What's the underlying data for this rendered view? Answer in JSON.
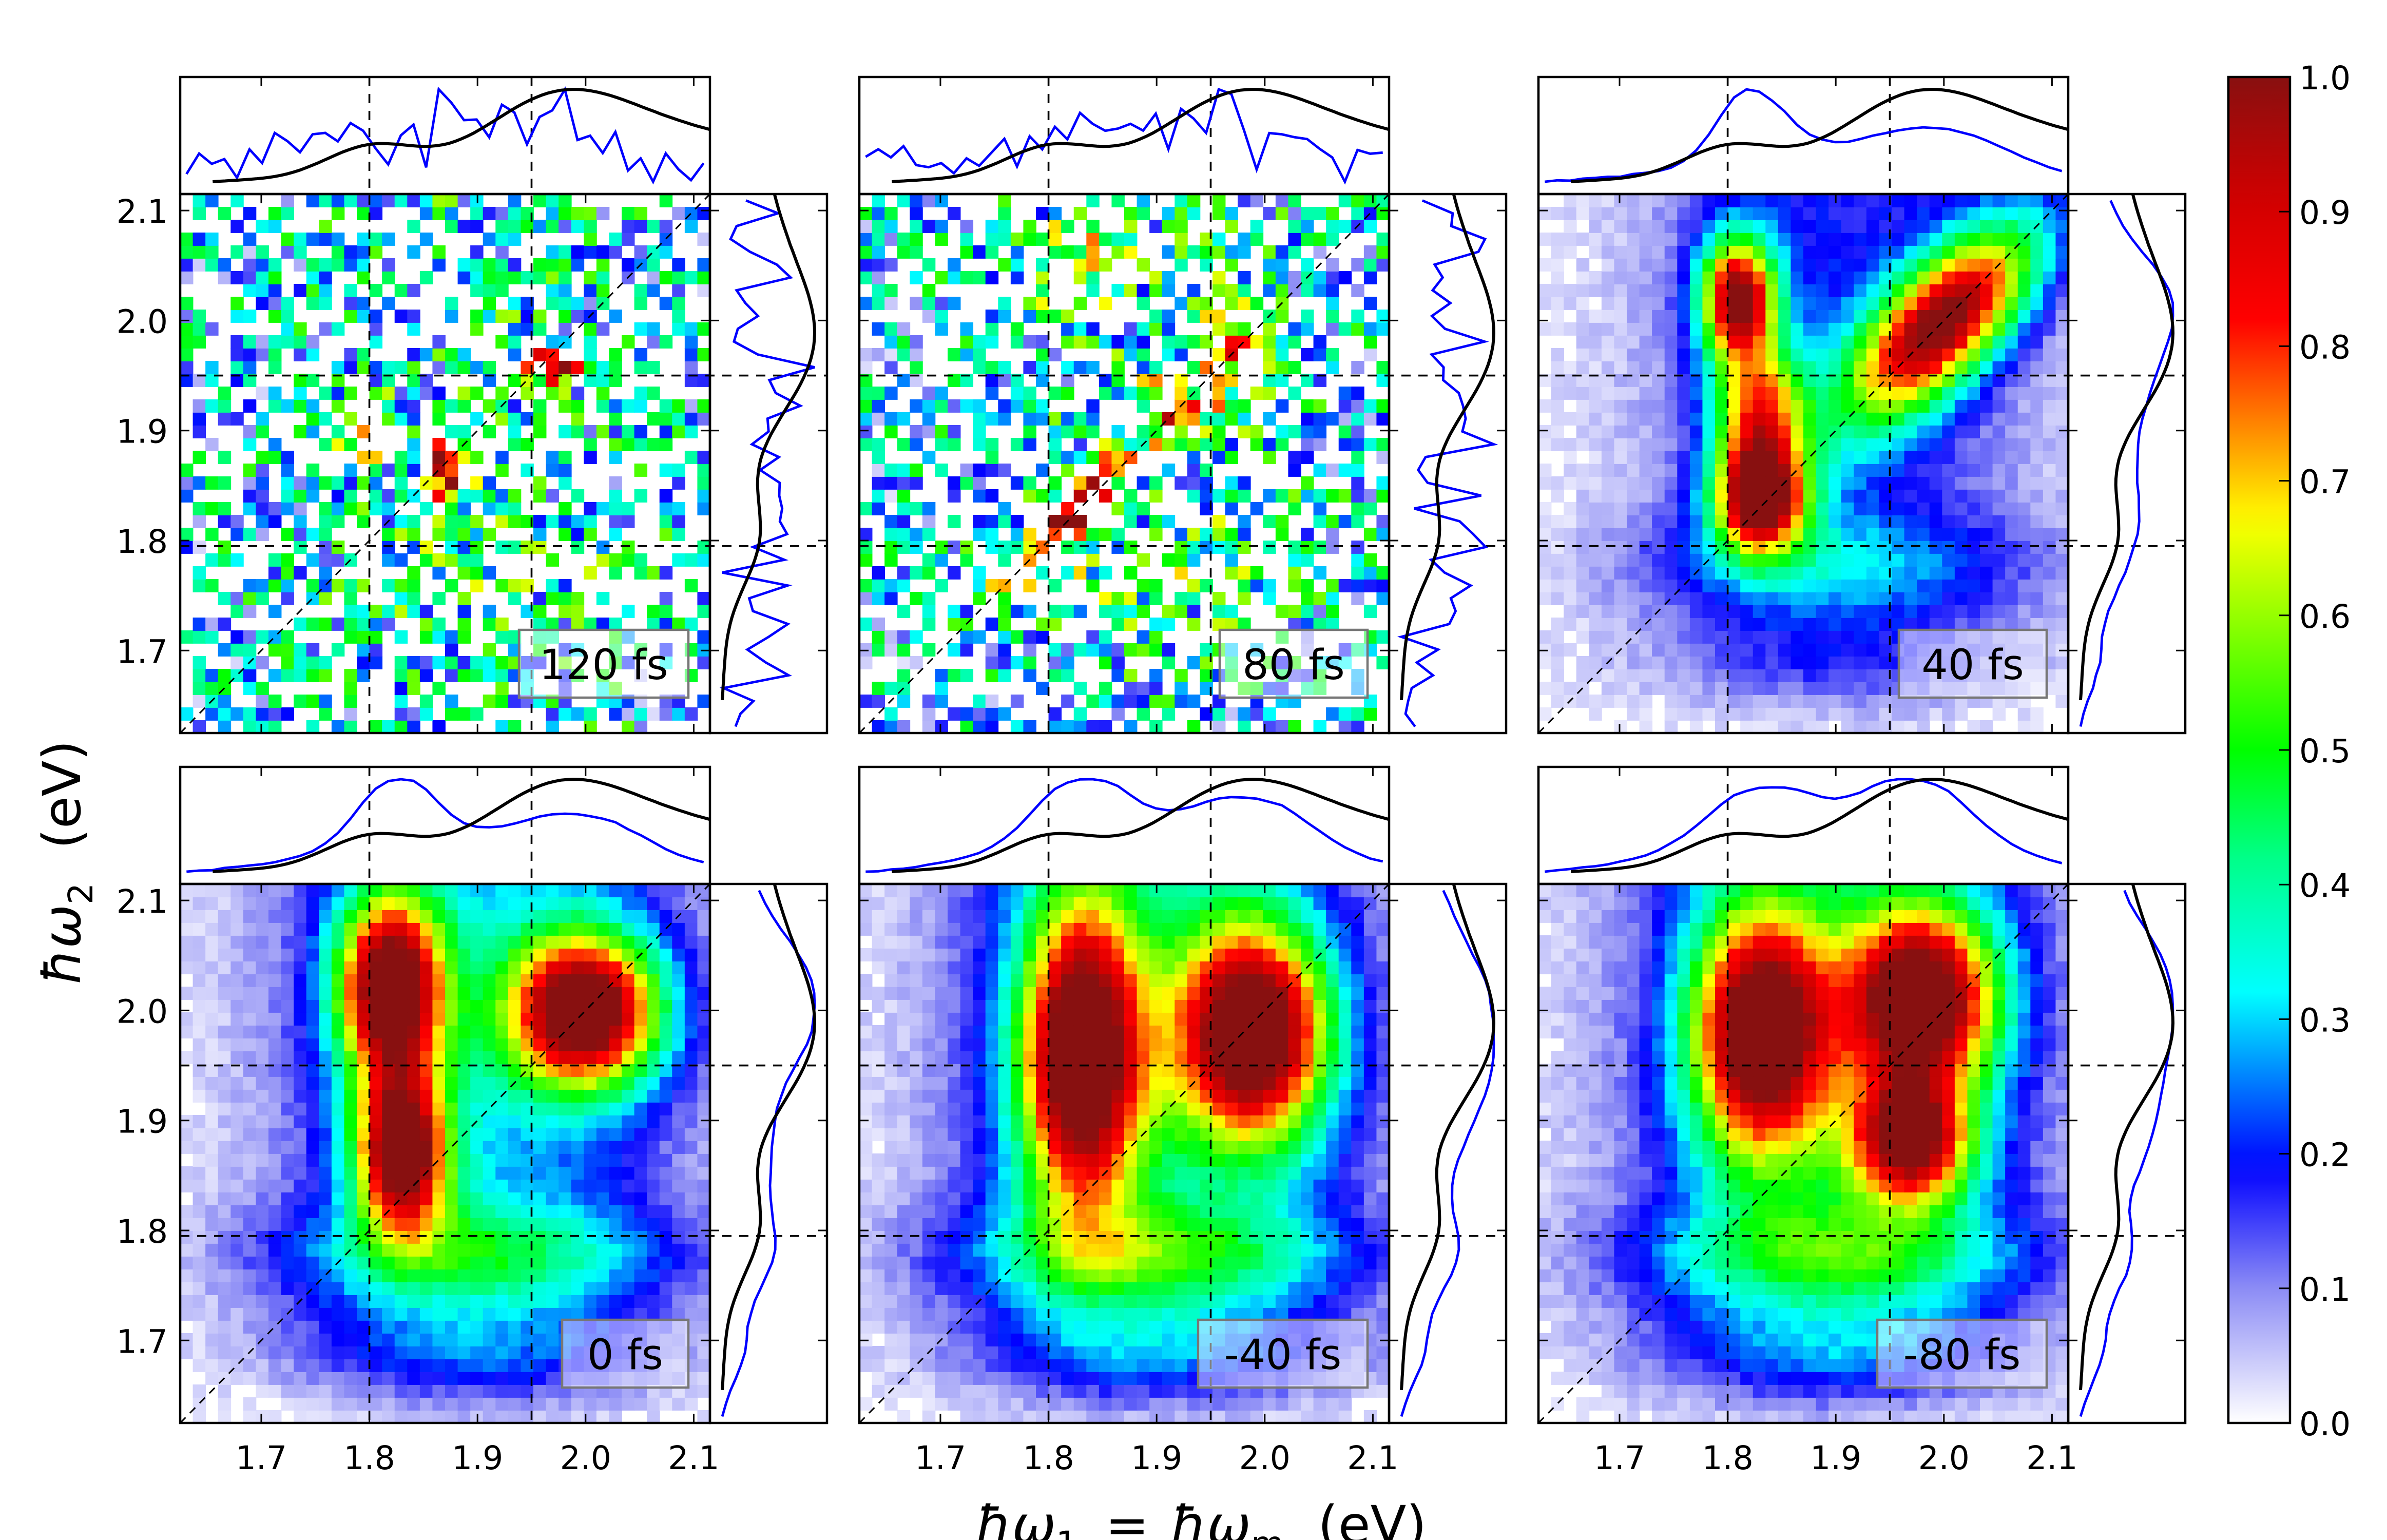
{
  "chart_data": {
    "type": "heatmap",
    "xlabel": "ħω₁ = ħω_m (eV)",
    "xlabel_parts": {
      "a": "ħω",
      "a_sub": "1",
      "eq": "=",
      "b": "ħω",
      "b_sub": "m",
      "unit": "(eV)"
    },
    "ylabel_parts": {
      "a": "ħω",
      "a_sub": "2",
      "unit": "(eV)"
    },
    "xlim": [
      1.625,
      2.115
    ],
    "ylim": [
      1.625,
      2.115
    ],
    "x_ticks": [
      "1.7",
      "1.8",
      "1.9",
      "2.0",
      "2.1"
    ],
    "y_ticks": [
      "1.7",
      "1.8",
      "1.9",
      "2.0",
      "2.1"
    ],
    "reference_lines": {
      "vertical": [
        1.8,
        1.95
      ],
      "horizontal": [
        1.795,
        1.95
      ],
      "diagonal": true
    },
    "colorbar": {
      "range": [
        0.0,
        1.0
      ],
      "ticks": [
        "0.0",
        "0.1",
        "0.2",
        "0.3",
        "0.4",
        "0.5",
        "0.6",
        "0.7",
        "0.8",
        "0.9",
        "1.0"
      ],
      "colormap": [
        [
          0.0,
          "#ffffff"
        ],
        [
          0.1,
          "#8c8cf5"
        ],
        [
          0.19,
          "#0000ff"
        ],
        [
          0.32,
          "#00ffff"
        ],
        [
          0.42,
          "#00ff88"
        ],
        [
          0.5,
          "#00ff00"
        ],
        [
          0.67,
          "#ffff00"
        ],
        [
          0.82,
          "#ff0000"
        ],
        [
          0.91,
          "#d00000"
        ],
        [
          1.0,
          "#881010"
        ]
      ]
    },
    "marginal_colors": {
      "projection": "#0000ff",
      "linear": "#000000"
    },
    "panels": [
      {
        "label": "120 fs",
        "noisy": true,
        "background": 0.28,
        "peaks": [
          {
            "x": 1.87,
            "y": 1.87,
            "amp": 0.95,
            "sx": 0.015,
            "sy": 0.02
          },
          {
            "x": 1.97,
            "y": 1.96,
            "amp": 0.9,
            "sx": 0.02,
            "sy": 0.012
          },
          {
            "x": 1.79,
            "y": 1.9,
            "amp": 0.6,
            "sx": 0.02,
            "sy": 0.02
          },
          {
            "x": 2.01,
            "y": 1.63,
            "amp": 0.8,
            "sx": 0.015,
            "sy": 0.01
          }
        ]
      },
      {
        "label": "80 fs",
        "noisy": true,
        "background": 0.3,
        "peaks": [
          {
            "x": 1.82,
            "y": 1.825,
            "amp": 0.95,
            "sx": 0.025,
            "sy": 0.015,
            "diag": true
          },
          {
            "x": 1.92,
            "y": 1.92,
            "amp": 0.55,
            "sx": 0.03,
            "sy": 0.02
          },
          {
            "x": 1.97,
            "y": 1.99,
            "amp": 0.55,
            "sx": 0.02,
            "sy": 0.03
          },
          {
            "x": 1.83,
            "y": 2.05,
            "amp": 0.45,
            "sx": 0.03,
            "sy": 0.03
          }
        ]
      },
      {
        "label": "40 fs",
        "noisy": false,
        "background": 0.3,
        "peaks": [
          {
            "x": 1.83,
            "y": 1.84,
            "amp": 1.0,
            "sx": 0.03,
            "sy": 0.035
          },
          {
            "x": 1.81,
            "y": 2.02,
            "amp": 0.92,
            "sx": 0.025,
            "sy": 0.04
          },
          {
            "x": 2.0,
            "y": 2.0,
            "amp": 0.92,
            "sx": 0.04,
            "sy": 0.035,
            "diag": true
          },
          {
            "x": 1.83,
            "y": 1.92,
            "amp": 0.6,
            "sx": 0.03,
            "sy": 0.04
          }
        ]
      },
      {
        "label": "0 fs",
        "noisy": false,
        "background": 0.45,
        "peaks": [
          {
            "x": 1.82,
            "y": 2.02,
            "amp": 1.0,
            "sx": 0.035,
            "sy": 0.06
          },
          {
            "x": 1.83,
            "y": 1.87,
            "amp": 0.95,
            "sx": 0.03,
            "sy": 0.05
          },
          {
            "x": 2.0,
            "y": 2.0,
            "amp": 1.0,
            "sx": 0.05,
            "sy": 0.05
          }
        ]
      },
      {
        "label": "-40 fs",
        "noisy": false,
        "background": 0.5,
        "peaks": [
          {
            "x": 1.83,
            "y": 1.96,
            "amp": 1.0,
            "sx": 0.04,
            "sy": 0.1
          },
          {
            "x": 1.99,
            "y": 1.98,
            "amp": 1.0,
            "sx": 0.05,
            "sy": 0.07
          }
        ]
      },
      {
        "label": "-80 fs",
        "noisy": false,
        "background": 0.5,
        "peaks": [
          {
            "x": 1.83,
            "y": 1.98,
            "amp": 0.97,
            "sx": 0.045,
            "sy": 0.08
          },
          {
            "x": 1.98,
            "y": 2.01,
            "amp": 0.97,
            "sx": 0.05,
            "sy": 0.06
          },
          {
            "x": 1.97,
            "y": 1.88,
            "amp": 0.8,
            "sx": 0.04,
            "sy": 0.04
          }
        ]
      }
    ]
  }
}
